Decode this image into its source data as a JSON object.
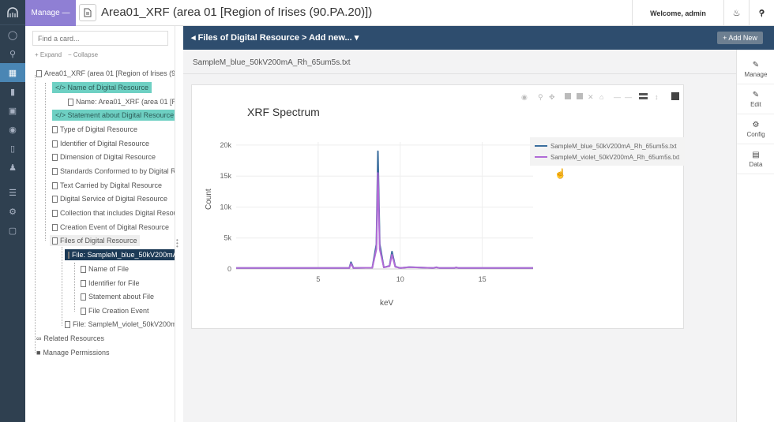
{
  "topbar": {
    "manage_label": "Manage —",
    "title": "Area01_XRF (area 01 [Region of Irises (90.PA.20)])",
    "welcome": "Welcome, admin"
  },
  "tree": {
    "search_placeholder": "Find a card...",
    "expand": "+ Expand",
    "collapse": "− Collapse",
    "nodes": [
      "Area01_XRF (area 01 [Region of Irises (90.P",
      "</> Name of Digital Resource",
      "Name: Area01_XRF (area 01 [Reg",
      "</> Statement about Digital Resource",
      "Type of Digital Resource",
      "Identifier of Digital Resource",
      "Dimension of Digital Resource",
      "Standards Conformed to by Digital Re",
      "Text Carried by Digital Resource",
      "Digital Service of Digital Resource",
      "Collection that includes Digital Resour",
      "Creation Event of Digital Resource",
      "Files of Digital Resource",
      "File: SampleM_blue_50kV200mA_",
      "Name of File",
      "Identifier for File",
      "Statement about File",
      "File Creation Event",
      "File: SampleM_violet_50kV200mA",
      "Related Resources",
      "Manage Permissions"
    ]
  },
  "main": {
    "breadcrumb": "◂ Files of Digital Resource > Add new... ▾",
    "add_new": "+ Add New",
    "filename": "SampleM_blue_50kV200mA_Rh_65um5s.txt"
  },
  "right_panel": [
    "Manage",
    "Edit",
    "Config",
    "Data"
  ],
  "chart_data": {
    "type": "line",
    "title": "XRF Spectrum",
    "xlabel": "keV",
    "ylabel": "Count",
    "xlim": [
      0,
      18.1
    ],
    "ylim": [
      0,
      20500
    ],
    "x_ticks": [
      5,
      10,
      15
    ],
    "y_ticks": [
      0,
      5000,
      10000,
      15000,
      20000
    ],
    "y_tick_labels": [
      "0",
      "5k",
      "10k",
      "15k",
      "20k"
    ],
    "grid": true,
    "legend_position": "top-right",
    "series": [
      {
        "name": "SampleM_blue_50kV200mA_Rh_65um5s.txt",
        "color": "#3b6e9e",
        "points": [
          [
            0,
            150
          ],
          [
            4,
            150
          ],
          [
            6.9,
            160
          ],
          [
            7.0,
            1100
          ],
          [
            7.15,
            160
          ],
          [
            8.3,
            200
          ],
          [
            8.55,
            4000
          ],
          [
            8.64,
            19000
          ],
          [
            8.75,
            4000
          ],
          [
            9.0,
            250
          ],
          [
            9.35,
            500
          ],
          [
            9.5,
            2800
          ],
          [
            9.7,
            400
          ],
          [
            10.0,
            150
          ],
          [
            10.55,
            300
          ],
          [
            12.0,
            150
          ],
          [
            12.2,
            280
          ],
          [
            12.4,
            150
          ],
          [
            13.3,
            150
          ],
          [
            13.4,
            260
          ],
          [
            13.55,
            150
          ],
          [
            18.1,
            150
          ]
        ]
      },
      {
        "name": "SampleM_violet_50kV200mA_Rh_65um5s.txt",
        "color": "#b06bd6",
        "points": [
          [
            0,
            150
          ],
          [
            4,
            150
          ],
          [
            6.9,
            160
          ],
          [
            7.0,
            850
          ],
          [
            7.15,
            160
          ],
          [
            8.3,
            200
          ],
          [
            8.55,
            3200
          ],
          [
            8.64,
            15500
          ],
          [
            8.75,
            3200
          ],
          [
            9.0,
            250
          ],
          [
            9.35,
            450
          ],
          [
            9.5,
            2300
          ],
          [
            9.7,
            350
          ],
          [
            10.0,
            150
          ],
          [
            10.55,
            280
          ],
          [
            12.0,
            150
          ],
          [
            12.2,
            250
          ],
          [
            12.4,
            150
          ],
          [
            13.3,
            150
          ],
          [
            13.4,
            240
          ],
          [
            13.55,
            150
          ],
          [
            18.1,
            150
          ]
        ]
      }
    ]
  }
}
